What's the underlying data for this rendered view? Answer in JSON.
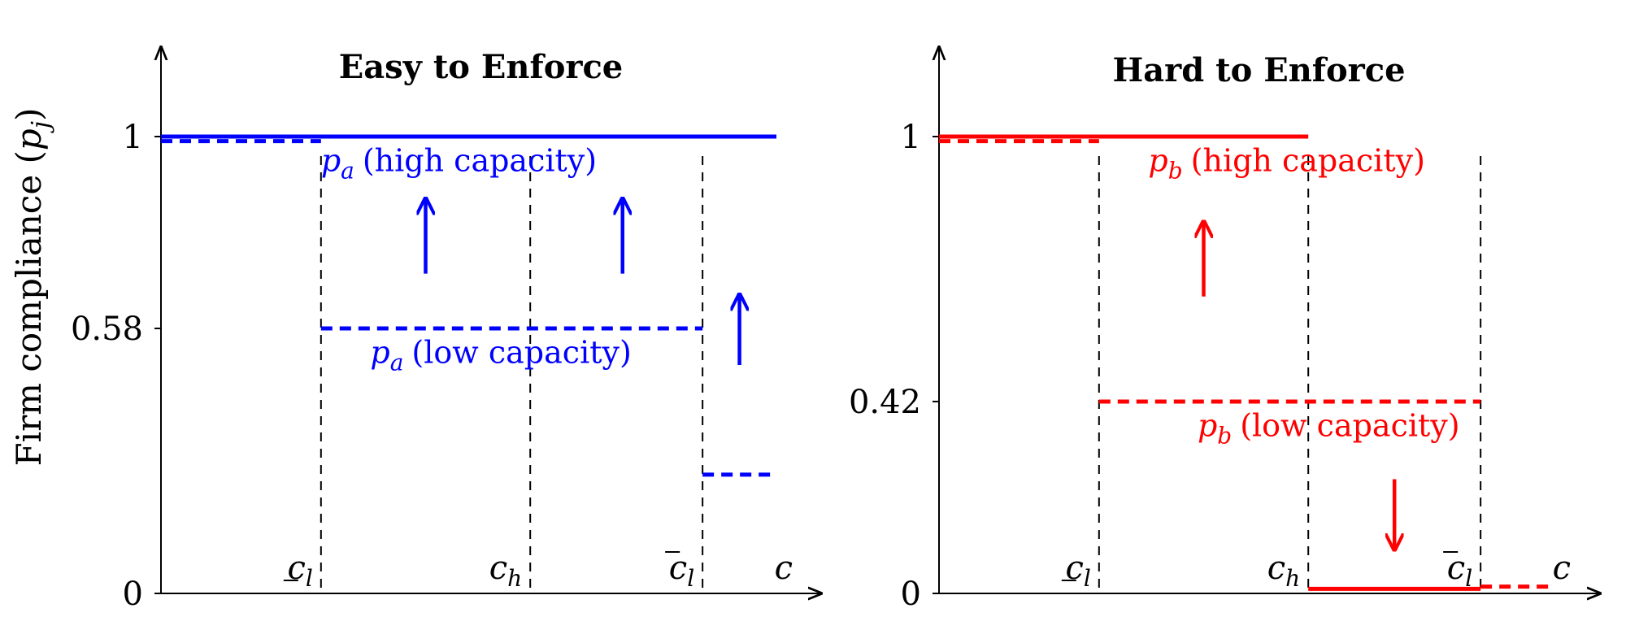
{
  "figure": {
    "ylabel": "Firm compliance (p_j)"
  },
  "chart_data": [
    {
      "type": "line",
      "title": "Easy to Enforce",
      "color": "#0000ff",
      "xlabel": "c",
      "ylabel": "Firm compliance (p_j)",
      "ylim": [
        0,
        1
      ],
      "x_ticks": [
        {
          "id": "cl_under",
          "label": "c_l",
          "deco": "under",
          "x": 0.26
        },
        {
          "id": "ch",
          "label": "c_h",
          "deco": "",
          "x": 0.6
        },
        {
          "id": "cl_over",
          "label": "c_l",
          "deco": "over",
          "x": 0.88
        }
      ],
      "y_ticks": [
        0,
        0.58,
        1
      ],
      "y_tick_labels": [
        "0",
        "0.58",
        "1"
      ],
      "series": [
        {
          "name": "p_a (high capacity)",
          "style": "solid",
          "segments": [
            {
              "x0": 0.0,
              "x1": 1.0,
              "y": 1
            }
          ]
        },
        {
          "name": "p_a (low capacity)",
          "style": "dashed",
          "segments": [
            {
              "x0": 0.0,
              "x1": 0.26,
              "y": 0.99
            },
            {
              "x0": 0.26,
              "x1": 0.88,
              "y": 0.58
            },
            {
              "x0": 0.88,
              "x1": 1.0,
              "y": 0.26
            }
          ]
        }
      ],
      "labels": [
        {
          "var": "p",
          "sub": "a",
          "text": "(high capacity)",
          "x": 0.26,
          "y": 0.96
        },
        {
          "var": "p",
          "sub": "a",
          "text": "(low capacity)",
          "x": 0.34,
          "y": 0.54
        }
      ],
      "arrows": [
        {
          "x": 0.43,
          "y_from": 0.7,
          "y_to": 0.86,
          "direction": "up"
        },
        {
          "x": 0.75,
          "y_from": 0.7,
          "y_to": 0.86,
          "direction": "up"
        },
        {
          "x": 0.94,
          "y_from": 0.5,
          "y_to": 0.65,
          "direction": "up"
        }
      ]
    },
    {
      "type": "line",
      "title": "Hard to Enforce",
      "color": "#ff0000",
      "xlabel": "c",
      "ylabel": "",
      "ylim": [
        0,
        1
      ],
      "x_ticks": [
        {
          "id": "cl_under",
          "label": "c_l",
          "deco": "under",
          "x": 0.26
        },
        {
          "id": "ch",
          "label": "c_h",
          "deco": "",
          "x": 0.6
        },
        {
          "id": "cl_over",
          "label": "c_l",
          "deco": "over",
          "x": 0.88
        }
      ],
      "y_ticks": [
        0,
        0.42,
        1
      ],
      "y_tick_labels": [
        "0",
        "0.42",
        "1"
      ],
      "series": [
        {
          "name": "p_b (high capacity)",
          "style": "solid",
          "segments": [
            {
              "x0": 0.0,
              "x1": 0.6,
              "y": 1
            },
            {
              "x0": 0.6,
              "x1": 0.88,
              "y": 0.01
            }
          ]
        },
        {
          "name": "p_b (low capacity)",
          "style": "dashed",
          "segments": [
            {
              "x0": 0.0,
              "x1": 0.26,
              "y": 0.99
            },
            {
              "x0": 0.26,
              "x1": 0.88,
              "y": 0.42
            },
            {
              "x0": 0.88,
              "x1": 1.0,
              "y": 0.015
            }
          ]
        }
      ],
      "labels": [
        {
          "var": "p",
          "sub": "b",
          "text": "(high capacity)",
          "x": 0.34,
          "y": 0.96
        },
        {
          "var": "p",
          "sub": "b",
          "text": "(low capacity)",
          "x": 0.42,
          "y": 0.38
        }
      ],
      "arrows": [
        {
          "x": 0.43,
          "y_from": 0.65,
          "y_to": 0.81,
          "direction": "up"
        },
        {
          "x": 0.74,
          "y_from": 0.25,
          "y_to": 0.1,
          "direction": "down"
        }
      ]
    }
  ]
}
